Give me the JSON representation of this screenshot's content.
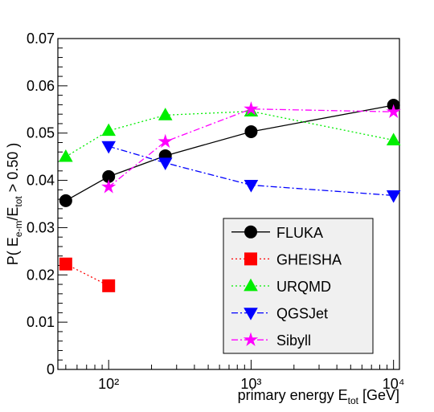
{
  "chart_data": {
    "type": "line",
    "y_label": [
      "P( E",
      "e-m",
      "/E",
      "tot",
      " > 0.50 )"
    ],
    "x_label": [
      "primary energy E",
      "tot",
      " [GeV]"
    ],
    "log_x": true,
    "xlim": [
      44,
      11000
    ],
    "ylim": [
      0,
      0.07
    ],
    "xticks": [
      {
        "value": 100,
        "label": "10²"
      },
      {
        "value": 1000,
        "label": "10³"
      },
      {
        "value": 10000,
        "label": "10⁴"
      }
    ],
    "yticks": [
      0,
      0.01,
      0.02,
      0.03,
      0.04,
      0.05,
      0.06,
      0.07
    ],
    "series": [
      {
        "name": "FLUKA",
        "color": "#000000",
        "marker": "circle",
        "dash": "solid",
        "x": [
          50,
          100,
          250,
          1000,
          10000
        ],
        "values": [
          0.0357,
          0.0408,
          0.0452,
          0.0503,
          0.0559
        ]
      },
      {
        "name": "GHEISHA",
        "color": "#ff0000",
        "marker": "square",
        "dash": "dotted",
        "x": [
          50,
          100
        ],
        "values": [
          0.0223,
          0.0177
        ]
      },
      {
        "name": "URQMD",
        "color": "#00ee00",
        "marker": "triangle-up",
        "dash": "dotted",
        "x": [
          50,
          100,
          250,
          1000,
          10000
        ],
        "values": [
          0.045,
          0.0505,
          0.0538,
          0.0546,
          0.0485
        ]
      },
      {
        "name": "QGSJet",
        "color": "#0000ff",
        "marker": "triangle-down",
        "dash": "dashdot",
        "x": [
          100,
          250,
          1000,
          10000
        ],
        "values": [
          0.0472,
          0.0437,
          0.039,
          0.0368
        ]
      },
      {
        "name": "Sibyll",
        "color": "#ff00ff",
        "marker": "star",
        "dash": "dashdot",
        "x": [
          100,
          250,
          1000,
          10000
        ],
        "values": [
          0.0386,
          0.0482,
          0.0551,
          0.0545
        ]
      }
    ]
  }
}
